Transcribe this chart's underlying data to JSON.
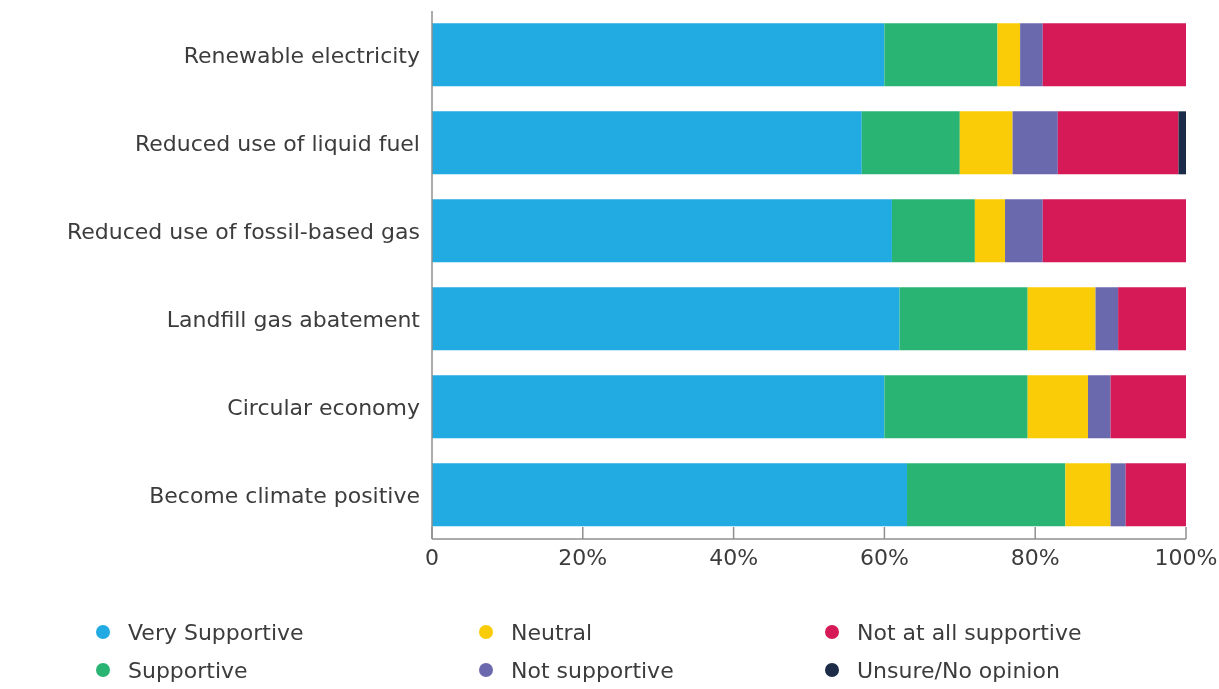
{
  "chart_data": {
    "type": "bar",
    "orientation": "horizontal",
    "stacked": true,
    "categories": [
      "Renewable electricity",
      "Reduced use of liquid fuel",
      "Reduced use of fossil-based gas",
      "Landfill gas abatement",
      "Circular economy",
      "Become climate positive"
    ],
    "series": [
      {
        "name": "Very Supportive",
        "color": "#22abe3",
        "values": [
          60,
          57,
          61,
          62,
          60,
          63
        ]
      },
      {
        "name": "Supportive",
        "color": "#29b473",
        "values": [
          15,
          13,
          11,
          17,
          19,
          21
        ]
      },
      {
        "name": "Neutral",
        "color": "#f9cc07",
        "values": [
          3,
          7,
          4,
          9,
          8,
          6
        ]
      },
      {
        "name": "Not supportive",
        "color": "#6b69ae",
        "values": [
          3,
          6,
          5,
          3,
          3,
          2
        ]
      },
      {
        "name": "Not at all supportive",
        "color": "#d61a57",
        "values": [
          19,
          16,
          19,
          9,
          10,
          8
        ]
      },
      {
        "name": "Unsure/No opinion",
        "color": "#1c2b47",
        "values": [
          0,
          1,
          0,
          0,
          0,
          0
        ]
      }
    ],
    "xlim": [
      0,
      100
    ],
    "xticks": [
      0,
      {
        "value": 20,
        "label": "20%"
      },
      {
        "value": 40,
        "label": "40%"
      },
      {
        "value": 60,
        "label": "60%"
      },
      {
        "value": 80,
        "label": "80%"
      },
      {
        "value": 100,
        "label": "100%"
      }
    ],
    "legend": "bottom"
  }
}
